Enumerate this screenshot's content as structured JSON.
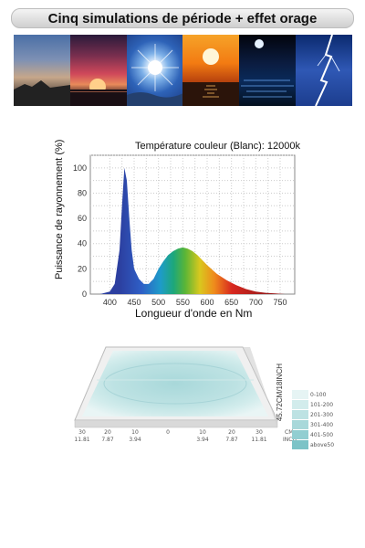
{
  "banner": {
    "title": "Cinq simulations de période + effet orage"
  },
  "photos": [
    {
      "name": "sunrise-photo"
    },
    {
      "name": "sunset-photo"
    },
    {
      "name": "sun-photo"
    },
    {
      "name": "evening-sun-photo"
    },
    {
      "name": "moonlight-photo"
    },
    {
      "name": "lightning-photo"
    }
  ],
  "chart_data": {
    "type": "area",
    "title": "Température couleur (Blanc): 12000k",
    "xlabel": "Longueur d'onde en Nm",
    "ylabel": "Puissance de rayonnement (%)",
    "xlim": [
      360,
      780
    ],
    "ylim": [
      0,
      110
    ],
    "x_ticks": [
      400,
      450,
      500,
      550,
      600,
      650,
      700,
      750
    ],
    "y_ticks": [
      0,
      20,
      40,
      60,
      80,
      100
    ],
    "grid": true,
    "series": [
      {
        "x": [
          380,
          400,
          410,
          420,
          425,
          430,
          435,
          440,
          445,
          450,
          460,
          470,
          480,
          490,
          500,
          510,
          520,
          530,
          540,
          550,
          560,
          570,
          580,
          590,
          600,
          620,
          640,
          660,
          680,
          700,
          720,
          740,
          760
        ],
        "values": [
          0,
          2,
          8,
          35,
          70,
          100,
          90,
          60,
          35,
          20,
          12,
          8,
          8,
          12,
          20,
          26,
          31,
          34,
          36,
          37,
          36,
          34,
          31,
          27,
          23,
          16,
          11,
          7,
          4,
          2,
          1,
          0.5,
          0
        ]
      }
    ]
  },
  "heatmap": {
    "x_ticks_cm": [
      "30",
      "20",
      "10",
      "0",
      "10",
      "20",
      "30"
    ],
    "x_ticks_inch": [
      "11.81",
      "7.87",
      "3.94",
      "",
      "3.94",
      "7.87",
      "11.81"
    ],
    "x_unit_cm": "CM",
    "x_unit_inch": "INCH",
    "side_label": "45.72CM/18INCH",
    "legend": [
      {
        "label": "0-100",
        "color": "#e6f4f4"
      },
      {
        "label": "101-200",
        "color": "#d2ecec"
      },
      {
        "label": "201-300",
        "color": "#bde2e3"
      },
      {
        "label": "301-400",
        "color": "#a8d8da"
      },
      {
        "label": "401-500",
        "color": "#92ced1"
      },
      {
        "label": "above50",
        "color": "#7cc3c7"
      }
    ]
  }
}
